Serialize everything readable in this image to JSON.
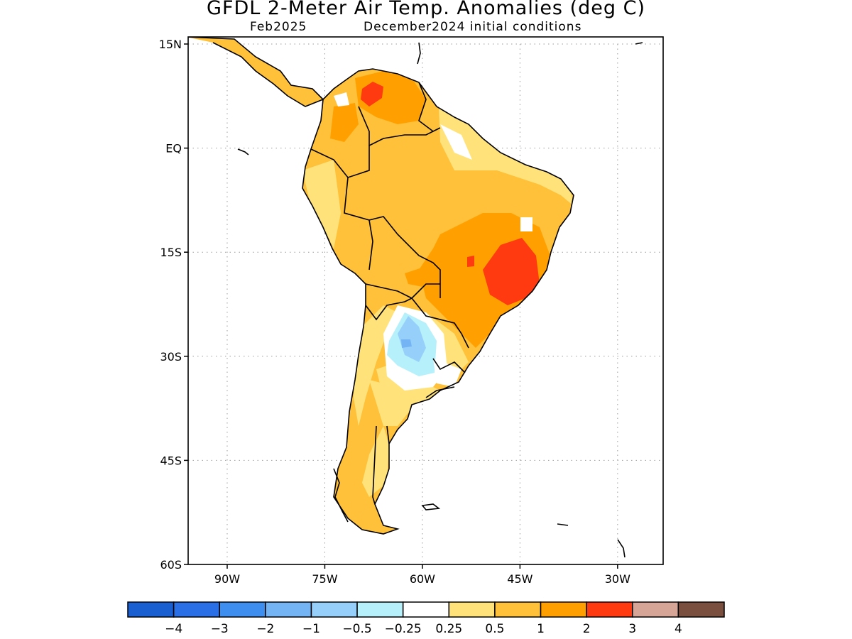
{
  "title": "GFDL 2-Meter Air Temp. Anomalies (deg C)",
  "subtitle_left": "Feb2025",
  "subtitle_right": "December2024 initial conditions",
  "map": {
    "lon_range": [
      -96,
      -23
    ],
    "lat_range": [
      -60,
      15
    ],
    "y_ticks": [
      "15N",
      "EQ",
      "15S",
      "30S",
      "45S",
      "60S"
    ],
    "x_ticks": [
      "90W",
      "75W",
      "60W",
      "45W",
      "30W"
    ],
    "gridlines": "dotted"
  },
  "colorbar": {
    "colors": [
      "#1a5fd1",
      "#2b6fe6",
      "#3e8ef0",
      "#74b4f5",
      "#96d0fa",
      "#b6f0fb",
      "#ffffff",
      "#ffe37a",
      "#ffc03a",
      "#ffa000",
      "#ff3a10",
      "#d6a598",
      "#7a4f40"
    ],
    "labels": [
      "−4",
      "−3",
      "−2",
      "−1",
      "−0.5",
      "−0.25",
      "0.25",
      "0.5",
      "1",
      "2",
      "3",
      "4"
    ]
  }
}
